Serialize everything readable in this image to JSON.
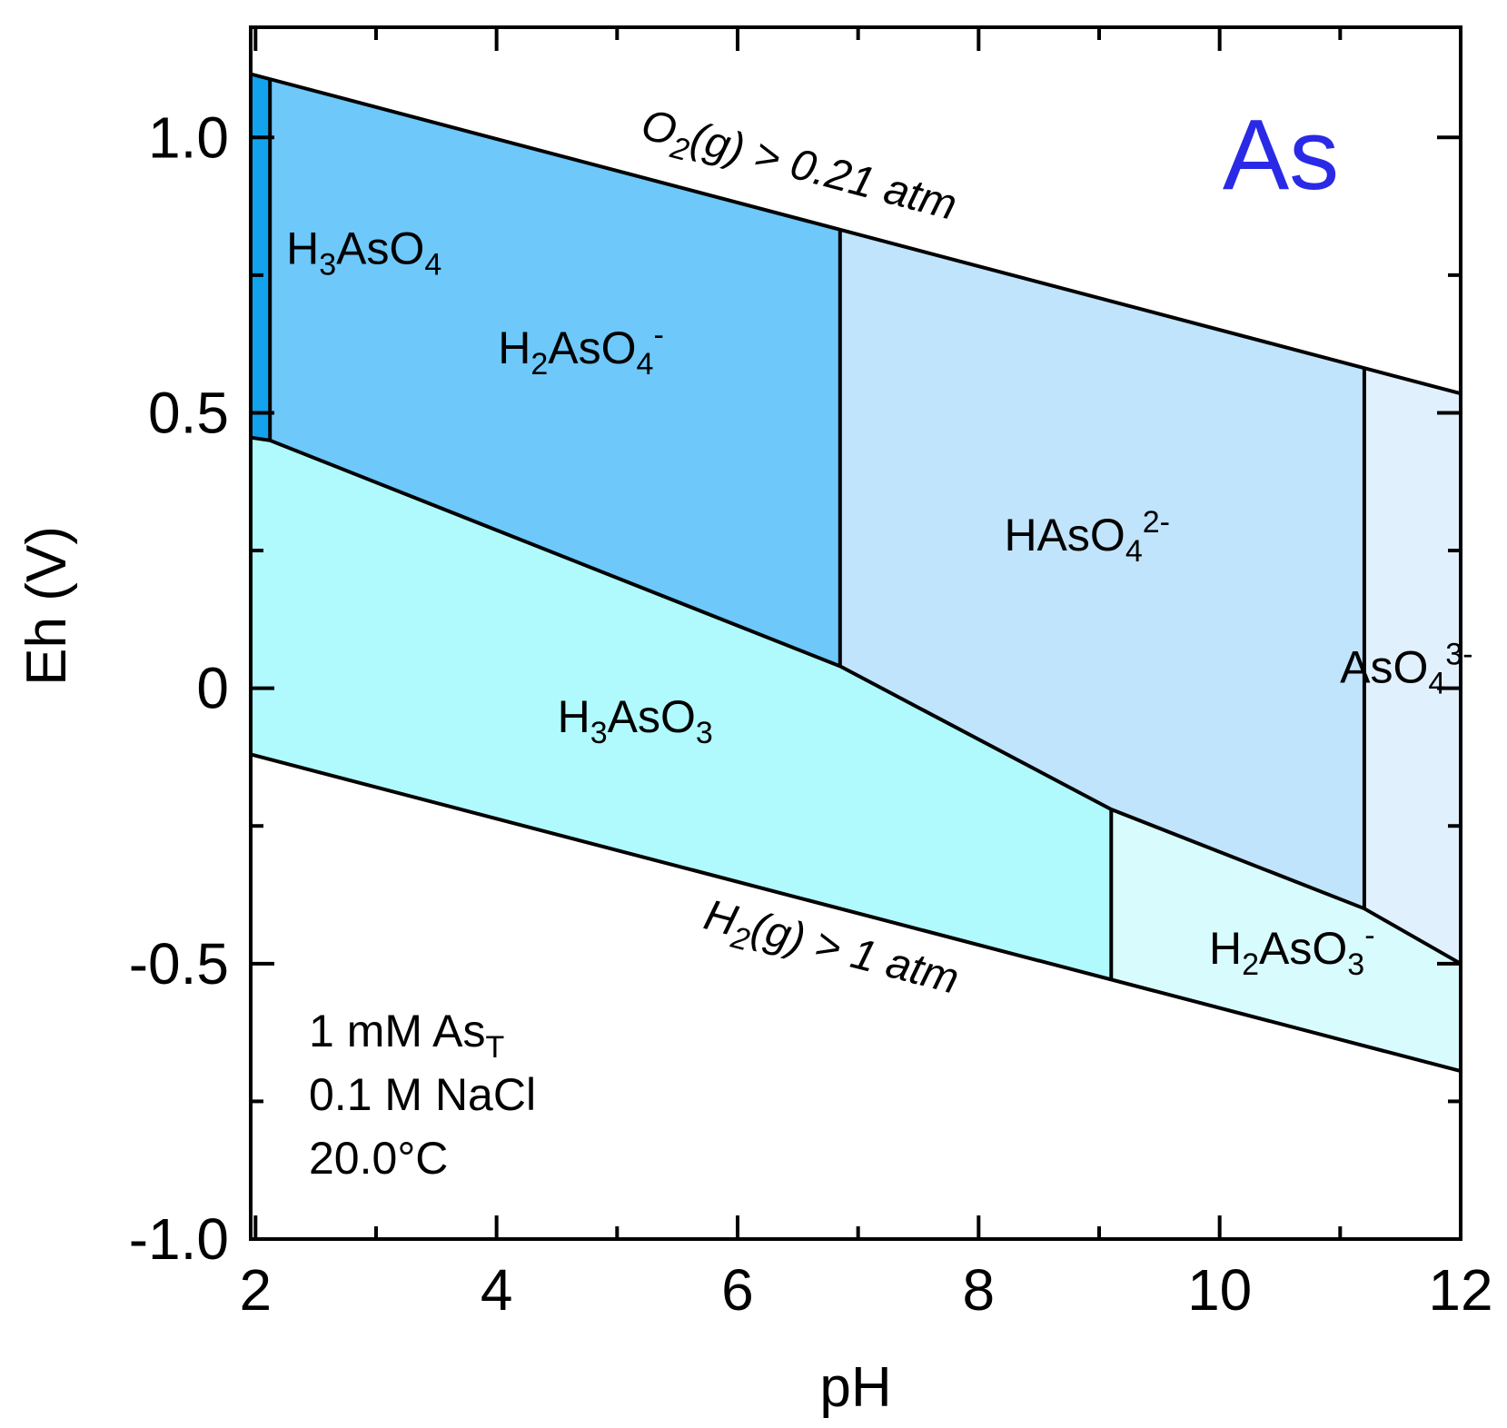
{
  "chart_data": {
    "type": "area",
    "title": "",
    "element_label": "As",
    "element_color": "#2a2ae6",
    "xlabel": "pH",
    "ylabel": "Eh (V)",
    "xlim": [
      1.96,
      12.0
    ],
    "ylim": [
      -1.0,
      1.2
    ],
    "x_ticks": [
      2,
      4,
      6,
      8,
      10,
      12
    ],
    "x_tick_labels": [
      "2",
      "4",
      "6",
      "8",
      "10",
      "12"
    ],
    "x_minor_ticks": [
      3,
      5,
      7,
      9,
      11
    ],
    "y_ticks": [
      -1.0,
      -0.5,
      0,
      0.5,
      1.0
    ],
    "y_tick_labels": [
      "-1.0",
      "-0.5",
      "0",
      "0.5",
      "1.0"
    ],
    "y_minor_ticks": [
      -0.75,
      -0.25,
      0.25,
      0.75
    ],
    "grid": false,
    "conditions": [
      "1 mM As",
      "0.1 M NaCl",
      "20.0°C"
    ],
    "conditions_subscript": "T",
    "regions": [
      {
        "species": "H3AsO4",
        "label_parts": [
          {
            "t": "H"
          },
          {
            "t": "3",
            "sub": true
          },
          {
            "t": "AsO"
          },
          {
            "t": "4",
            "sub": true
          }
        ],
        "color": "#12a3ec",
        "polygon": [
          [
            1.96,
            1.115
          ],
          [
            2.12,
            1.105
          ],
          [
            2.12,
            0.45
          ],
          [
            1.96,
            0.455
          ]
        ],
        "label_at": [
          2.9,
          0.77
        ]
      },
      {
        "species": "H2AsO4-",
        "label_parts": [
          {
            "t": "H"
          },
          {
            "t": "2",
            "sub": true
          },
          {
            "t": "AsO"
          },
          {
            "t": "4",
            "sub": true
          },
          {
            "t": "-",
            "sup": true
          }
        ],
        "color": "#6ec8fa",
        "polygon": [
          [
            2.12,
            1.105
          ],
          [
            6.85,
            0.83
          ],
          [
            6.85,
            0.04
          ],
          [
            2.12,
            0.45
          ]
        ],
        "label_at": [
          4.7,
          0.59
        ]
      },
      {
        "species": "HAsO4 2-",
        "label_parts": [
          {
            "t": "HAsO"
          },
          {
            "t": "4",
            "sub": true
          },
          {
            "t": "2-",
            "sup": true
          }
        ],
        "color": "#c0e4fb",
        "polygon": [
          [
            6.85,
            0.83
          ],
          [
            11.2,
            0.58
          ],
          [
            11.2,
            -0.4
          ],
          [
            9.1,
            -0.22
          ],
          [
            6.85,
            0.04
          ]
        ],
        "label_at": [
          8.9,
          0.25
        ]
      },
      {
        "species": "AsO4 3-",
        "label_parts": [
          {
            "t": "AsO"
          },
          {
            "t": "4",
            "sub": true
          },
          {
            "t": "3-",
            "sup": true
          }
        ],
        "color": "#e0f0fc",
        "polygon": [
          [
            11.2,
            0.58
          ],
          [
            12.0,
            0.535
          ],
          [
            12.0,
            -0.5
          ],
          [
            11.2,
            -0.4
          ]
        ],
        "label_at": [
          11.55,
          0.01
        ]
      },
      {
        "species": "H3AsO3",
        "label_parts": [
          {
            "t": "H"
          },
          {
            "t": "3",
            "sub": true
          },
          {
            "t": "AsO"
          },
          {
            "t": "3",
            "sub": true
          }
        ],
        "color": "#b0fafd",
        "polygon": [
          [
            1.96,
            0.455
          ],
          [
            2.12,
            0.45
          ],
          [
            6.85,
            0.04
          ],
          [
            9.1,
            -0.22
          ],
          [
            9.1,
            -0.53
          ],
          [
            1.96,
            -0.12
          ]
        ],
        "label_at": [
          5.15,
          -0.08
        ]
      },
      {
        "species": "H2AsO3-",
        "label_parts": [
          {
            "t": "H"
          },
          {
            "t": "2",
            "sub": true
          },
          {
            "t": "AsO"
          },
          {
            "t": "3",
            "sub": true
          },
          {
            "t": "-",
            "sup": true
          }
        ],
        "color": "#d8fcfe",
        "polygon": [
          [
            9.1,
            -0.22
          ],
          [
            11.2,
            -0.4
          ],
          [
            12.0,
            -0.5
          ],
          [
            12.0,
            -0.695
          ],
          [
            9.1,
            -0.53
          ]
        ],
        "label_at": [
          10.6,
          -0.5
        ]
      }
    ],
    "boundaries": [
      {
        "name": "o2-limit",
        "points": [
          [
            1.96,
            1.115
          ],
          [
            12.0,
            0.535
          ]
        ]
      },
      {
        "name": "h2-limit",
        "points": [
          [
            1.96,
            -0.12
          ],
          [
            12.0,
            -0.695
          ]
        ]
      },
      {
        "name": "as5-as3",
        "points": [
          [
            1.96,
            0.455
          ],
          [
            2.12,
            0.45
          ],
          [
            6.85,
            0.04
          ],
          [
            9.1,
            -0.22
          ],
          [
            11.2,
            -0.4
          ],
          [
            12.0,
            -0.5
          ]
        ]
      },
      {
        "name": "h3aso4-h2aso4",
        "points": [
          [
            2.12,
            1.105
          ],
          [
            2.12,
            0.45
          ]
        ]
      },
      {
        "name": "h2aso4-haso4",
        "points": [
          [
            6.85,
            0.83
          ],
          [
            6.85,
            0.04
          ]
        ]
      },
      {
        "name": "haso4-aso4",
        "points": [
          [
            11.2,
            0.58
          ],
          [
            11.2,
            -0.4
          ]
        ]
      },
      {
        "name": "h3aso3-h2aso3",
        "points": [
          [
            9.1,
            -0.22
          ],
          [
            9.1,
            -0.53
          ]
        ]
      }
    ],
    "boundary_labels": [
      {
        "name": "o2-label",
        "text": "O",
        "sub": "2",
        "rest": "(g) > 0.21 atm",
        "at": [
          6.48,
          0.925
        ]
      },
      {
        "name": "h2-label",
        "text": "H",
        "sub": "2",
        "rest": "(g) > 1 atm",
        "at": [
          6.75,
          -0.495
        ]
      }
    ]
  }
}
